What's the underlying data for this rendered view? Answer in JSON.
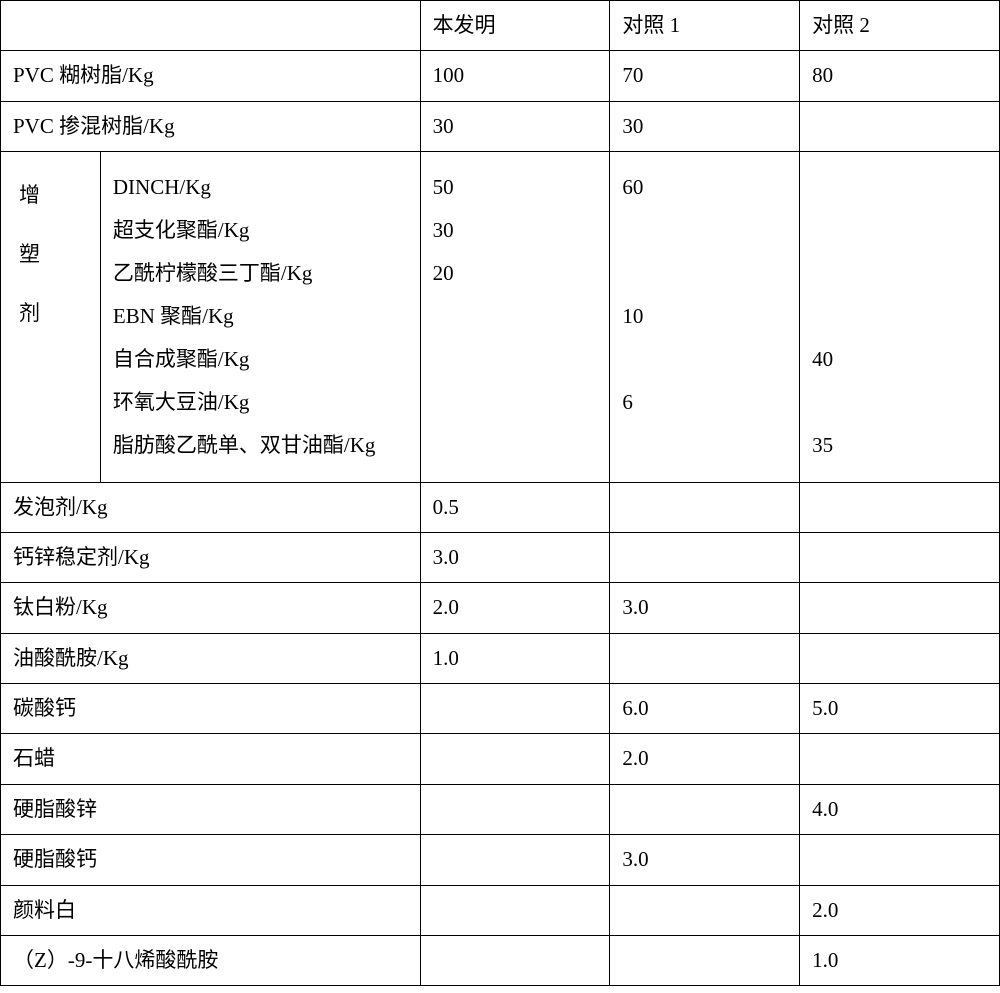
{
  "header": {
    "blank": "",
    "col1": "本发明",
    "col2": "对照 1",
    "col3": "对照 2"
  },
  "rows": {
    "pvc_paste": {
      "label": "PVC 糊树脂/Kg",
      "v1": "100",
      "v2": "70",
      "v3": "80"
    },
    "pvc_blend": {
      "label": "PVC 掺混树脂/Kg",
      "v1": "30",
      "v2": "30",
      "v3": ""
    },
    "plasticizer_group_label_char1": "增",
    "plasticizer_group_label_char2": "塑",
    "plasticizer_group_label_char3": "剂",
    "plasticizer_sub": {
      "l1": "DINCH/Kg",
      "l2": "超支化聚酯/Kg",
      "l3": "乙酰柠檬酸三丁酯/Kg",
      "l4": "EBN 聚酯/Kg",
      "l5": "自合成聚酯/Kg",
      "l6": "环氧大豆油/Kg",
      "l7": "脂肪酸乙酰单、双甘油酯/Kg"
    },
    "plasticizer_v1": {
      "l1": "50",
      "l2": "30",
      "l3": "20",
      "l4": "",
      "l5": "",
      "l6": "",
      "l7": ""
    },
    "plasticizer_v2": {
      "l1": "60",
      "l2": "",
      "l3": "",
      "l4": "10",
      "l5": "",
      "l6": "6",
      "l7": ""
    },
    "plasticizer_v3": {
      "l1": "",
      "l2": "",
      "l3": "",
      "l4": "",
      "l5": "40",
      "l6": "",
      "l7": "35"
    },
    "foaming": {
      "label": "发泡剂/Kg",
      "v1": "0.5",
      "v2": "",
      "v3": ""
    },
    "cazn": {
      "label": "钙锌稳定剂/Kg",
      "v1": "3.0",
      "v2": "",
      "v3": ""
    },
    "tio2": {
      "label": "钛白粉/Kg",
      "v1": "2.0",
      "v2": "3.0",
      "v3": ""
    },
    "oleamide": {
      "label": "油酸酰胺/Kg",
      "v1": "1.0",
      "v2": "",
      "v3": ""
    },
    "caco3": {
      "label": "碳酸钙",
      "v1": "",
      "v2": "6.0",
      "v3": "5.0"
    },
    "paraffin": {
      "label": "石蜡",
      "v1": "",
      "v2": "2.0",
      "v3": ""
    },
    "znst": {
      "label": "硬脂酸锌",
      "v1": "",
      "v2": "",
      "v3": "4.0"
    },
    "cast": {
      "label": "硬脂酸钙",
      "v1": "",
      "v2": "3.0",
      "v3": ""
    },
    "pigwhite": {
      "label": "颜料白",
      "v1": "",
      "v2": "",
      "v3": "2.0"
    },
    "z9": {
      "label": "（Z）-9-十八烯酸酰胺",
      "v1": "",
      "v2": "",
      "v3": "1.0"
    }
  },
  "style": {
    "border_color": "#000000",
    "text_color": "#000000",
    "background": "#ffffff",
    "font_size_pt": 16
  }
}
